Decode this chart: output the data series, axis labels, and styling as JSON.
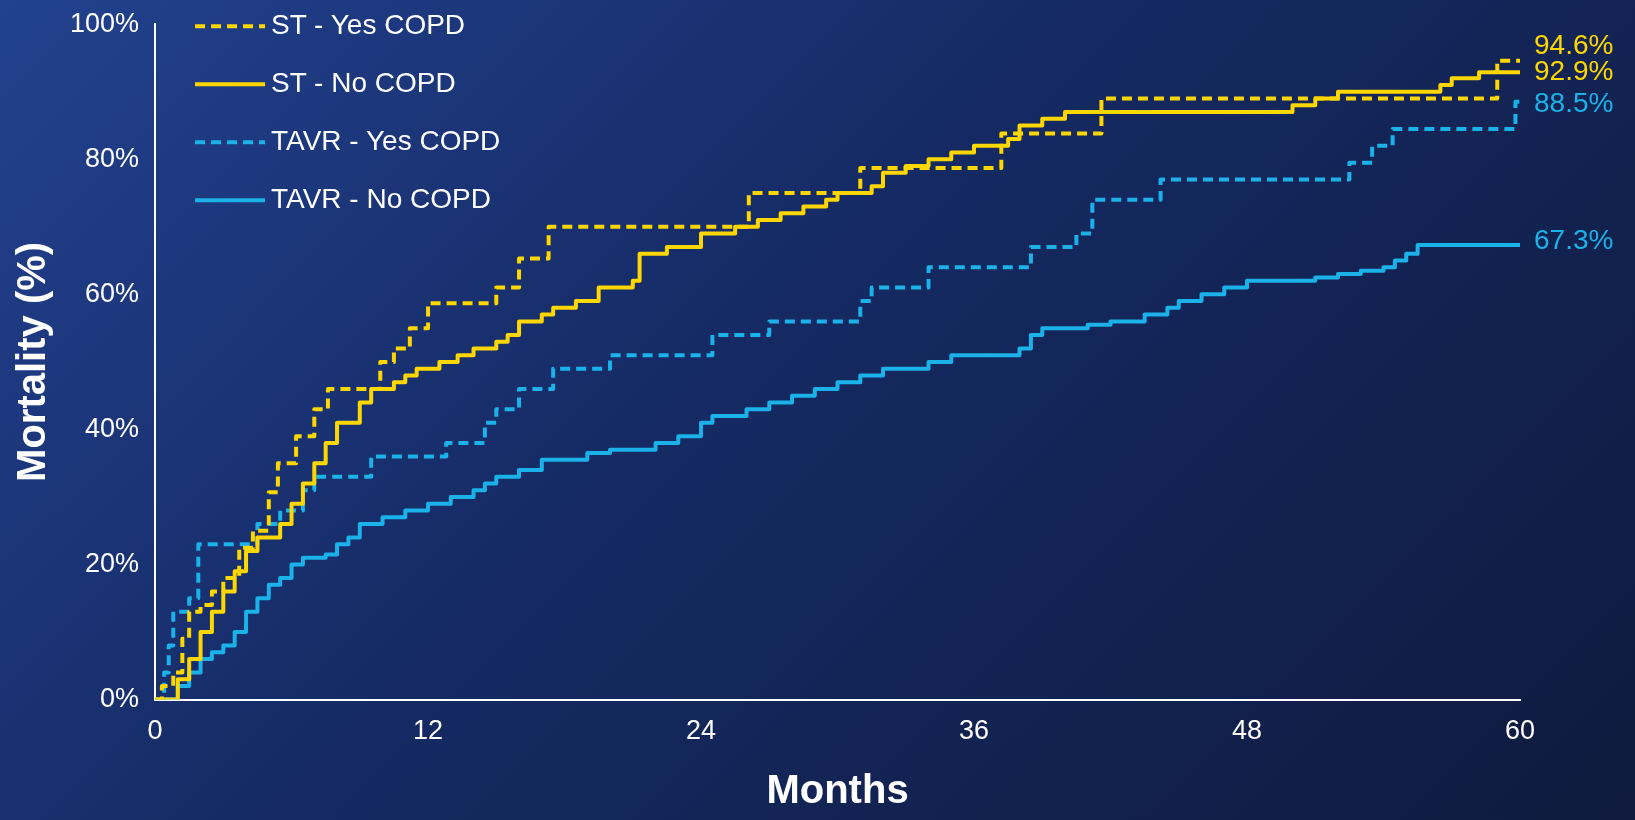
{
  "chart_data": {
    "type": "step",
    "xlabel": "Months",
    "ylabel": "Mortality (%)",
    "xlim": [
      0,
      60
    ],
    "xticks": [
      0,
      12,
      24,
      36,
      48,
      60
    ],
    "ylim": [
      0,
      100
    ],
    "yticks": [
      {
        "value": 0,
        "label": "0%"
      },
      {
        "value": 20,
        "label": "20%"
      },
      {
        "value": 40,
        "label": "40%"
      },
      {
        "value": 60,
        "label": "60%"
      },
      {
        "value": 80,
        "label": "80%"
      },
      {
        "value": 100,
        "label": "100%"
      }
    ],
    "grid": false,
    "legend": "top left",
    "marker": "none",
    "series": [
      {
        "name": "ST - Yes COPD",
        "color": "#ffd700",
        "line_style": "dashed",
        "x": [
          0,
          0.3,
          0.8,
          1.2,
          1.5,
          2,
          2.5,
          3,
          3.7,
          4.3,
          5,
          5.4,
          6.2,
          7,
          7.6,
          9.9,
          10.5,
          11.2,
          12,
          15,
          16,
          17.3,
          26.1,
          31,
          37.2,
          41.6,
          59,
          60
        ],
        "values": [
          0,
          2,
          4,
          9,
          13,
          14,
          16,
          18,
          22.5,
          25,
          30.7,
          35,
          39,
          43,
          46,
          50,
          52,
          55,
          58.7,
          61,
          65.3,
          70,
          75,
          78.7,
          83.8,
          89,
          94.6,
          94.6
        ]
      },
      {
        "name": "ST - No COPD",
        "color": "#ffd700",
        "line_style": "solid",
        "x": [
          0,
          1,
          1.5,
          2,
          2.5,
          3,
          3.5,
          4,
          4.5,
          5.5,
          6,
          6.5,
          7,
          7.5,
          8,
          9,
          9.5,
          10.5,
          11,
          11.5,
          12.5,
          13.3,
          14,
          15,
          15.5,
          16,
          17,
          17.5,
          18.5,
          19.5,
          21,
          21.3,
          22.5,
          24,
          25.5,
          26.5,
          27.5,
          28.5,
          29.5,
          30,
          31.5,
          32,
          33,
          34,
          35,
          36,
          37.5,
          38,
          39,
          40,
          50,
          51,
          52,
          56.5,
          57,
          58.2,
          60
        ],
        "values": [
          0,
          3,
          6,
          10,
          13,
          16,
          19,
          22,
          24,
          26,
          29,
          32,
          35,
          38,
          41,
          44,
          46,
          47,
          48,
          49,
          50,
          51,
          52,
          53,
          54,
          56,
          57,
          58,
          59,
          61,
          62,
          66,
          67,
          69,
          70,
          71,
          72,
          73,
          74,
          75,
          76,
          78,
          79,
          80,
          81,
          82,
          83,
          85,
          86,
          87,
          88,
          89,
          90,
          91,
          92,
          92.9,
          92.9
        ]
      },
      {
        "name": "TAVR - Yes COPD",
        "color": "#1ab2e8",
        "line_style": "dashed",
        "x": [
          0,
          0.4,
          0.6,
          0.8,
          1.5,
          1.9,
          3.8,
          4.5,
          5.5,
          6.5,
          7,
          9.5,
          12.8,
          14.5,
          15,
          16,
          17.5,
          20,
          24.5,
          27,
          31,
          31.5,
          34,
          38.5,
          40.5,
          41.2,
          44.2,
          52.5,
          53.5,
          54.4,
          59.8,
          60
        ],
        "values": [
          0,
          4,
          8,
          13,
          15,
          23,
          23,
          26,
          28,
          31,
          33,
          36,
          38,
          41,
          43,
          46,
          49,
          51,
          54,
          56,
          59,
          61,
          64,
          67,
          69,
          74,
          77,
          79.5,
          82,
          84.5,
          88.5,
          88.5
        ]
      },
      {
        "name": "TAVR - No COPD",
        "color": "#1ab2e8",
        "line_style": "solid",
        "x": [
          0,
          1,
          1.5,
          2,
          2.5,
          3,
          3.5,
          4,
          4.5,
          5,
          5.5,
          6,
          6.5,
          7.5,
          8,
          8.5,
          9,
          10,
          11,
          12,
          13,
          14,
          14.5,
          15,
          16,
          17,
          19,
          20,
          22,
          23,
          24,
          24.5,
          26,
          27,
          28,
          29,
          30,
          31,
          32,
          34,
          35,
          38,
          38.5,
          39,
          40,
          41,
          42,
          43.5,
          44.5,
          45,
          46,
          47,
          48,
          51,
          52,
          53,
          54,
          54.5,
          55,
          55.5,
          60
        ],
        "values": [
          0,
          2,
          4,
          6,
          7,
          8,
          10,
          13,
          15,
          17,
          18,
          20,
          21,
          21.5,
          23,
          24,
          26,
          27,
          28,
          29,
          30,
          31,
          32,
          33,
          34,
          35.5,
          36.5,
          37,
          38,
          39,
          41,
          42,
          43,
          44,
          45,
          46,
          47,
          48,
          49,
          50,
          51,
          52,
          54,
          55,
          55,
          55.5,
          56,
          57,
          58,
          59,
          60,
          61,
          62,
          62.5,
          63,
          63.5,
          64,
          65,
          66,
          67.3,
          67.3
        ]
      }
    ],
    "annotations": [
      "94.6%",
      "92.9%",
      "88.5%",
      "67.3%"
    ]
  }
}
